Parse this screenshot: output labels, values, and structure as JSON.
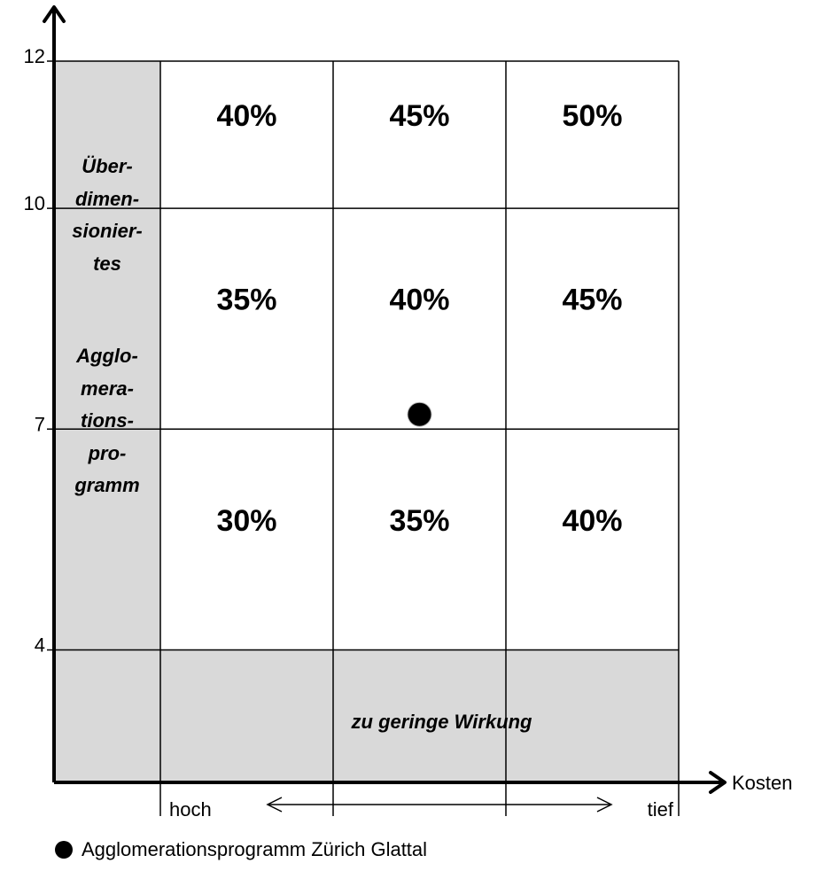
{
  "chart_data": {
    "type": "heatmap",
    "title": "",
    "xlabel": "Kosten",
    "ylabel": "",
    "y_ticks": [
      4,
      7,
      10,
      12
    ],
    "ylim": [
      2.2,
      12
    ],
    "x_columns": 4,
    "x_scale_start_label": "hoch",
    "x_scale_end_label": "tief",
    "x_scale_arrow": "double-headed arrow between hoch and tief",
    "cells": [
      {
        "col": 2,
        "y_range": [
          10,
          12
        ],
        "value": "40%"
      },
      {
        "col": 3,
        "y_range": [
          10,
          12
        ],
        "value": "45%"
      },
      {
        "col": 4,
        "y_range": [
          10,
          12
        ],
        "value": "50%"
      },
      {
        "col": 2,
        "y_range": [
          7,
          10
        ],
        "value": "35%"
      },
      {
        "col": 3,
        "y_range": [
          7,
          10
        ],
        "value": "40%"
      },
      {
        "col": 4,
        "y_range": [
          7,
          10
        ],
        "value": "45%"
      },
      {
        "col": 2,
        "y_range": [
          4,
          7
        ],
        "value": "30%"
      },
      {
        "col": 3,
        "y_range": [
          4,
          7
        ],
        "value": "35%"
      },
      {
        "col": 4,
        "y_range": [
          4,
          7
        ],
        "value": "40%"
      }
    ],
    "shaded_zones": [
      {
        "name": "Überdimensioniertes Agglomerationsprogramm",
        "region": "first column",
        "label_lines": [
          "Über-",
          "dimen-",
          "sionier-",
          "tes",
          "Agglo-",
          "mera-",
          "tions-",
          "pro-",
          "gramm"
        ]
      },
      {
        "name": "zu geringe Wirkung",
        "region": "below 4",
        "label_lines": [
          "zu geringe Wirkung"
        ]
      }
    ],
    "points": [
      {
        "name": "Agglomerationsprogramm Zürich Glattal",
        "col_position": 3.5,
        "y": 7.2
      }
    ],
    "legend": {
      "placement": "bottom-left",
      "entries": [
        {
          "symbol": "filled-circle",
          "label": "Agglomerationsprogramm Zürich Glattal"
        }
      ]
    },
    "grid": true,
    "colors": {
      "shaded": "#d9d9d9",
      "cell": "#ffffff",
      "lines": "#000000",
      "point": "#000000"
    }
  }
}
